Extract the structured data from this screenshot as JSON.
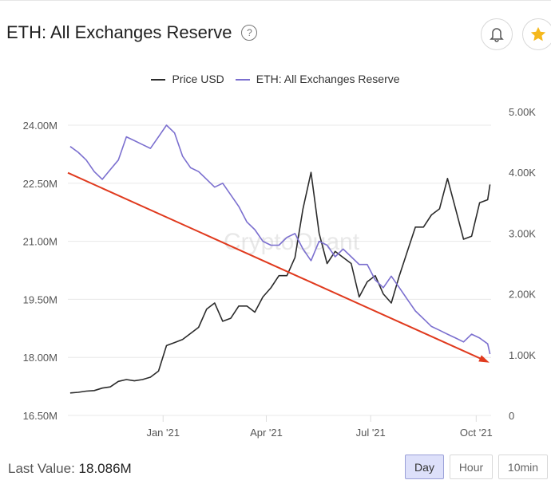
{
  "header": {
    "title": "ETH: All Exchanges Reserve",
    "help_icon": "question-circle-icon",
    "alert_icon": "bell-icon",
    "favorite_icon": "star-icon"
  },
  "footer": {
    "last_value_label": "Last Value:",
    "last_value": "18.086M",
    "intervals": [
      {
        "label": "Day",
        "active": true
      },
      {
        "label": "Hour",
        "active": false
      },
      {
        "label": "10min",
        "active": false
      }
    ]
  },
  "watermark": "CryptoQuant",
  "colors": {
    "price": "#2b2b2b",
    "reserve": "#7b6fcf",
    "trend": "#e03a1e",
    "active_button": "#dde0fa",
    "star": "#f5b81c"
  },
  "chart_data": {
    "type": "line",
    "legend_position": "top-center",
    "grid": true,
    "x_ticks": [
      "Jan '21",
      "Apr '21",
      "Jul '21",
      "Oct '21"
    ],
    "x_tick_dates": [
      "2021-01-01",
      "2021-04-01",
      "2021-07-01",
      "2021-10-01"
    ],
    "xlim": [
      "2020-10-10",
      "2021-10-14"
    ],
    "y_left": {
      "ticks": [
        "16.50M",
        "18.00M",
        "19.50M",
        "21.00M",
        "22.50M",
        "24.00M"
      ],
      "lim": [
        16.5,
        24.0
      ],
      "unit": "M"
    },
    "y_right": {
      "ticks": [
        "0",
        "1.00K",
        "2.00K",
        "3.00K",
        "4.00K",
        "5.00K"
      ],
      "lim": [
        0,
        5000
      ]
    },
    "x": [
      "2020-10-12",
      "2020-10-19",
      "2020-10-26",
      "2020-11-02",
      "2020-11-09",
      "2020-11-16",
      "2020-11-23",
      "2020-11-30",
      "2020-12-07",
      "2020-12-14",
      "2020-12-21",
      "2020-12-28",
      "2021-01-04",
      "2021-01-11",
      "2021-01-18",
      "2021-01-25",
      "2021-02-01",
      "2021-02-08",
      "2021-02-15",
      "2021-02-22",
      "2021-03-01",
      "2021-03-08",
      "2021-03-15",
      "2021-03-22",
      "2021-03-29",
      "2021-04-05",
      "2021-04-12",
      "2021-04-19",
      "2021-04-26",
      "2021-05-03",
      "2021-05-10",
      "2021-05-17",
      "2021-05-24",
      "2021-05-31",
      "2021-06-07",
      "2021-06-14",
      "2021-06-21",
      "2021-06-28",
      "2021-07-05",
      "2021-07-12",
      "2021-07-19",
      "2021-07-26",
      "2021-08-02",
      "2021-08-09",
      "2021-08-16",
      "2021-08-23",
      "2021-08-30",
      "2021-09-06",
      "2021-09-13",
      "2021-09-20",
      "2021-09-27",
      "2021-10-04",
      "2021-10-11",
      "2021-10-13"
    ],
    "series": [
      {
        "name": "Price USD",
        "axis": "right",
        "values": [
          370,
          380,
          400,
          410,
          450,
          470,
          560,
          590,
          570,
          590,
          630,
          730,
          1150,
          1200,
          1250,
          1350,
          1450,
          1750,
          1850,
          1550,
          1600,
          1800,
          1800,
          1700,
          1950,
          2100,
          2300,
          2300,
          2600,
          3400,
          4000,
          3000,
          2500,
          2700,
          2600,
          2500,
          1950,
          2200,
          2300,
          2000,
          1850,
          2300,
          2700,
          3100,
          3100,
          3300,
          3400,
          3900,
          3400,
          2900,
          2950,
          3500,
          3550,
          3800
        ]
      },
      {
        "name": "ETH: All Exchanges Reserve",
        "axis": "left",
        "values": [
          23.45,
          23.3,
          23.1,
          22.8,
          22.6,
          22.85,
          23.1,
          23.7,
          23.6,
          23.5,
          23.4,
          23.7,
          24.0,
          23.8,
          23.2,
          22.9,
          22.8,
          22.6,
          22.4,
          22.5,
          22.2,
          21.9,
          21.5,
          21.3,
          21.0,
          20.9,
          20.9,
          21.1,
          21.2,
          20.8,
          20.5,
          21.0,
          20.9,
          20.6,
          20.8,
          20.6,
          20.4,
          20.4,
          20.0,
          19.8,
          20.1,
          19.8,
          19.5,
          19.2,
          19.0,
          18.8,
          18.7,
          18.6,
          18.5,
          18.4,
          18.6,
          18.5,
          18.35,
          18.086
        ]
      }
    ],
    "annotations": [
      {
        "type": "arrow",
        "from": {
          "date": "2020-10-10",
          "value": 22.77
        },
        "to": {
          "date": "2021-10-10",
          "value": 17.9
        }
      }
    ]
  }
}
